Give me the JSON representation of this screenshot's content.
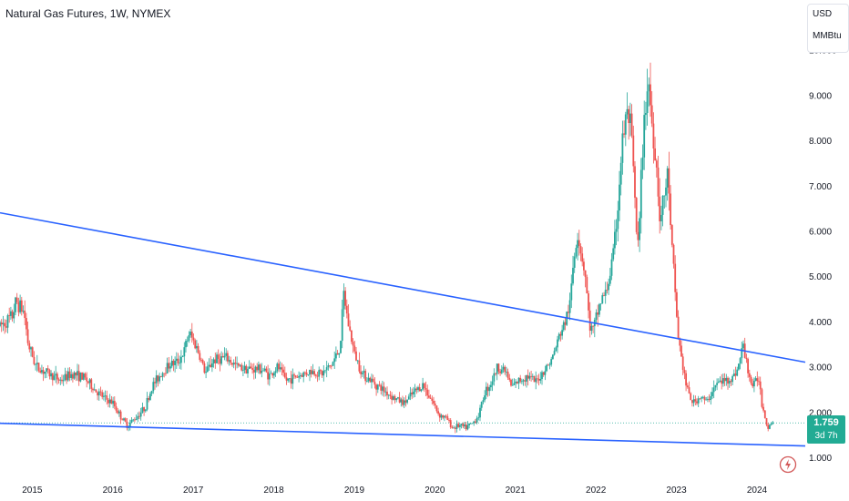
{
  "header": {
    "title": "Natural Gas Futures, 1W, NYMEX"
  },
  "units": {
    "currency": "USD",
    "measure": "MMBtu"
  },
  "price_tag": {
    "price": "1.759",
    "countdown": "3d 7h"
  },
  "icons": {
    "bolt": "lightning-bolt-icon"
  },
  "colors": {
    "up": "#26a69a",
    "down": "#ef5350",
    "trendline": "#2962ff",
    "last_price": "#22ab94"
  },
  "chart_data": {
    "type": "candlestick",
    "y_axis_side": "right",
    "ylim": [
      0.6,
      10.1
    ],
    "yticks": [
      "1.000",
      "2.000",
      "3.000",
      "4.000",
      "5.000",
      "6.000",
      "7.000",
      "8.000",
      "9.000",
      "10.000"
    ],
    "xticks": [
      "2015",
      "2016",
      "2017",
      "2018",
      "2019",
      "2020",
      "2021",
      "2022",
      "2023",
      "2024"
    ],
    "last_price": 1.759,
    "price_path": [
      [
        2014.6,
        3.9
      ],
      [
        2014.75,
        4.1
      ],
      [
        2014.8,
        4.45
      ],
      [
        2014.9,
        4.2
      ],
      [
        2014.95,
        3.5
      ],
      [
        2015.05,
        3.0
      ],
      [
        2015.2,
        2.85
      ],
      [
        2015.35,
        2.7
      ],
      [
        2015.5,
        2.85
      ],
      [
        2015.65,
        2.75
      ],
      [
        2015.8,
        2.45
      ],
      [
        2015.9,
        2.3
      ],
      [
        2016.0,
        2.2
      ],
      [
        2016.1,
        1.9
      ],
      [
        2016.18,
        1.7
      ],
      [
        2016.3,
        1.9
      ],
      [
        2016.4,
        2.1
      ],
      [
        2016.5,
        2.6
      ],
      [
        2016.6,
        2.85
      ],
      [
        2016.7,
        3.05
      ],
      [
        2016.8,
        3.1
      ],
      [
        2016.88,
        3.3
      ],
      [
        2016.95,
        3.75
      ],
      [
        2017.05,
        3.4
      ],
      [
        2017.15,
        2.85
      ],
      [
        2017.25,
        3.15
      ],
      [
        2017.4,
        3.2
      ],
      [
        2017.55,
        3.0
      ],
      [
        2017.7,
        2.95
      ],
      [
        2017.85,
        2.95
      ],
      [
        2017.95,
        2.8
      ],
      [
        2018.05,
        3.0
      ],
      [
        2018.15,
        2.7
      ],
      [
        2018.3,
        2.8
      ],
      [
        2018.45,
        2.9
      ],
      [
        2018.6,
        2.85
      ],
      [
        2018.72,
        3.05
      ],
      [
        2018.82,
        3.4
      ],
      [
        2018.87,
        4.6
      ],
      [
        2018.92,
        4.0
      ],
      [
        2019.0,
        3.3
      ],
      [
        2019.1,
        2.85
      ],
      [
        2019.2,
        2.7
      ],
      [
        2019.35,
        2.5
      ],
      [
        2019.5,
        2.3
      ],
      [
        2019.62,
        2.2
      ],
      [
        2019.75,
        2.45
      ],
      [
        2019.85,
        2.6
      ],
      [
        2019.95,
        2.3
      ],
      [
        2020.05,
        1.95
      ],
      [
        2020.15,
        1.85
      ],
      [
        2020.22,
        1.65
      ],
      [
        2020.3,
        1.7
      ],
      [
        2020.38,
        1.65
      ],
      [
        2020.47,
        1.75
      ],
      [
        2020.55,
        1.95
      ],
      [
        2020.62,
        2.45
      ],
      [
        2020.7,
        2.65
      ],
      [
        2020.78,
        3.0
      ],
      [
        2020.88,
        2.9
      ],
      [
        2020.95,
        2.55
      ],
      [
        2021.05,
        2.7
      ],
      [
        2021.15,
        2.8
      ],
      [
        2021.25,
        2.65
      ],
      [
        2021.35,
        2.9
      ],
      [
        2021.45,
        3.15
      ],
      [
        2021.55,
        3.7
      ],
      [
        2021.62,
        4.0
      ],
      [
        2021.68,
        4.4
      ],
      [
        2021.72,
        5.3
      ],
      [
        2021.77,
        6.0
      ],
      [
        2021.82,
        5.5
      ],
      [
        2021.87,
        5.0
      ],
      [
        2021.92,
        3.9
      ],
      [
        2021.97,
        3.8
      ],
      [
        2022.02,
        4.2
      ],
      [
        2022.07,
        4.5
      ],
      [
        2022.12,
        4.6
      ],
      [
        2022.17,
        5.0
      ],
      [
        2022.22,
        5.5
      ],
      [
        2022.27,
        6.5
      ],
      [
        2022.32,
        7.8
      ],
      [
        2022.37,
        8.5
      ],
      [
        2022.42,
        8.5
      ],
      [
        2022.47,
        7.2
      ],
      [
        2022.5,
        6.0
      ],
      [
        2022.53,
        5.6
      ],
      [
        2022.57,
        7.5
      ],
      [
        2022.62,
        8.9
      ],
      [
        2022.65,
        9.4
      ],
      [
        2022.7,
        8.3
      ],
      [
        2022.75,
        7.5
      ],
      [
        2022.8,
        6.2
      ],
      [
        2022.85,
        6.8
      ],
      [
        2022.9,
        7.3
      ],
      [
        2022.93,
        5.9
      ],
      [
        2022.97,
        5.0
      ],
      [
        2023.02,
        3.7
      ],
      [
        2023.07,
        3.1
      ],
      [
        2023.12,
        2.6
      ],
      [
        2023.17,
        2.3
      ],
      [
        2023.22,
        2.2
      ],
      [
        2023.3,
        2.35
      ],
      [
        2023.38,
        2.2
      ],
      [
        2023.45,
        2.5
      ],
      [
        2023.52,
        2.65
      ],
      [
        2023.6,
        2.7
      ],
      [
        2023.7,
        2.75
      ],
      [
        2023.78,
        3.05
      ],
      [
        2023.82,
        3.5
      ],
      [
        2023.87,
        3.1
      ],
      [
        2023.93,
        2.6
      ],
      [
        2023.97,
        2.6
      ],
      [
        2024.02,
        2.8
      ],
      [
        2024.06,
        2.2
      ],
      [
        2024.1,
        1.9
      ],
      [
        2024.14,
        1.65
      ],
      [
        2024.18,
        1.8
      ],
      [
        2024.2,
        1.759
      ]
    ],
    "trendlines": [
      {
        "points": [
          [
            2014.6,
            6.4
          ],
          [
            2024.6,
            3.1
          ]
        ]
      },
      {
        "points": [
          [
            2014.6,
            1.75
          ],
          [
            2024.6,
            1.25
          ]
        ]
      }
    ]
  }
}
